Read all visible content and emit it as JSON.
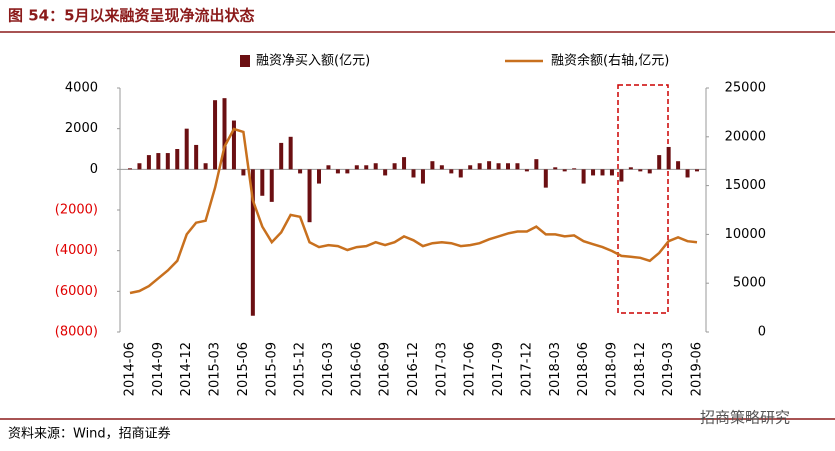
{
  "chart_data": {
    "type": "bar_line",
    "title": "图 54：5月以来融资呈现净流出状态",
    "source": "资料来源：Wind，招商证券",
    "watermark": "招商策略研究",
    "categories": [
      "2014-06",
      null,
      null,
      "2014-09",
      null,
      null,
      "2014-12",
      null,
      null,
      "2015-03",
      null,
      null,
      "2015-06",
      null,
      null,
      "2015-09",
      null,
      null,
      "2015-12",
      null,
      null,
      "2016-03",
      null,
      null,
      "2016-06",
      null,
      null,
      "2016-09",
      null,
      null,
      "2016-12",
      null,
      null,
      "2017-03",
      null,
      null,
      "2017-06",
      null,
      null,
      "2017-09",
      null,
      null,
      "2017-12",
      null,
      null,
      "2018-03",
      null,
      null,
      "2018-06",
      null,
      null,
      "2018-09",
      null,
      null,
      "2018-12",
      null,
      null,
      "2019-03",
      null,
      null,
      "2019-06"
    ],
    "series": [
      {
        "name": "融资净买入额(亿元)",
        "color": "#6b0f12",
        "type": "bar",
        "values": [
          50,
          300,
          700,
          800,
          800,
          1000,
          2000,
          1200,
          300,
          3400,
          3500,
          2400,
          -300,
          -7200,
          -1300,
          -1600,
          1300,
          1600,
          -200,
          -2600,
          -700,
          200,
          -200,
          -200,
          200,
          200,
          300,
          -300,
          300,
          600,
          -400,
          -700,
          400,
          200,
          -200,
          -400,
          200,
          300,
          400,
          300,
          300,
          300,
          -100,
          500,
          -900,
          100,
          -100,
          50,
          -700,
          -300,
          -300,
          -300,
          -600,
          100,
          -100,
          -200,
          700,
          1100,
          400,
          -400,
          -100
        ]
      },
      {
        "name": "融资余额(右轴,亿元)",
        "color": "#c8701e",
        "type": "line",
        "axis": "y2",
        "values": [
          4000,
          4200,
          4700,
          5500,
          6300,
          7300,
          10000,
          11200,
          11400,
          14800,
          19000,
          20800,
          20500,
          13500,
          10800,
          9200,
          10200,
          12000,
          11800,
          9200,
          8700,
          8900,
          8800,
          8400,
          8700,
          8800,
          9200,
          8900,
          9200,
          9800,
          9400,
          8800,
          9100,
          9200,
          9100,
          8800,
          8900,
          9100,
          9500,
          9800,
          10100,
          10300,
          10300,
          10800,
          10000,
          10000,
          9800,
          9900,
          9300,
          9000,
          8700,
          8300,
          7800,
          7700,
          7600,
          7300,
          8100,
          9300,
          9700,
          9300,
          9200
        ]
      }
    ],
    "ylim": [
      -8000,
      4000
    ],
    "yticks": [
      {
        "value": -8000,
        "label": "(8000)"
      },
      {
        "value": -6000,
        "label": "(6000)"
      },
      {
        "value": -4000,
        "label": "(4000)"
      },
      {
        "value": -2000,
        "label": "(2000)"
      },
      0,
      2000,
      4000
    ],
    "y2lim": [
      0,
      25000
    ],
    "y2ticks": [
      0,
      5000,
      10000,
      15000,
      20000,
      25000
    ],
    "grid": false
  }
}
